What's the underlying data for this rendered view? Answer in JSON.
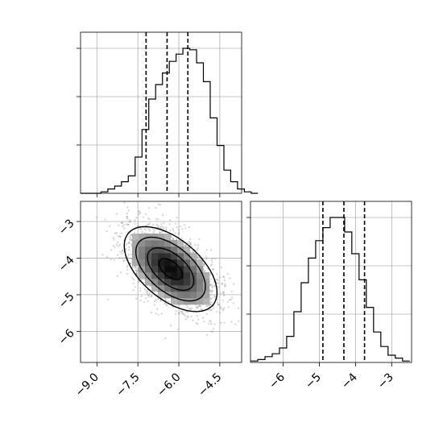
{
  "chart_data": [
    {
      "type": "histogram",
      "panel": "marginal-x",
      "x_range": [
        -9.6,
        -3.7
      ],
      "y_range": [
        0,
        1
      ],
      "grid": true,
      "bins_left_edge": -9.6,
      "bin_width": 0.25,
      "density": [
        0,
        0,
        0,
        0.01,
        0.03,
        0.05,
        0.08,
        0.12,
        0.25,
        0.44,
        0.65,
        0.75,
        0.83,
        0.91,
        0.96,
        1.0,
        0.99,
        0.9,
        0.77,
        0.52,
        0.33,
        0.16,
        0.08,
        0.03,
        0.01,
        0
      ],
      "quantiles": [
        -7.2,
        -6.43,
        -5.67
      ],
      "xticks": [],
      "yticks": []
    },
    {
      "type": "scatter-density",
      "panel": "joint",
      "x_range": [
        -9.6,
        -3.7
      ],
      "y_range": [
        -6.85,
        -2.45
      ],
      "grid": true,
      "center": [
        -6.3,
        -4.3
      ],
      "spread": [
        0.85,
        0.58
      ],
      "correlation": -0.55,
      "contour_levels_sigma": [
        0.5,
        1.0,
        1.5,
        2.0
      ],
      "xticks": [
        {
          "value": -9.0,
          "label": "−9.0"
        },
        {
          "value": -7.5,
          "label": "−7.5"
        },
        {
          "value": -6.0,
          "label": "−6.0"
        },
        {
          "value": -4.5,
          "label": "−4.5"
        }
      ],
      "yticks": [
        {
          "value": -3,
          "label": "−3"
        },
        {
          "value": -4,
          "label": "−4"
        },
        {
          "value": -5,
          "label": "−5"
        },
        {
          "value": -6,
          "label": "−6"
        }
      ]
    },
    {
      "type": "histogram",
      "panel": "marginal-y",
      "x_range": [
        -6.9,
        -2.45
      ],
      "y_range": [
        0,
        1
      ],
      "grid": true,
      "bins_left_edge": -6.9,
      "bin_width": 0.2,
      "density": [
        0.01,
        0.02,
        0.04,
        0.06,
        0.1,
        0.18,
        0.35,
        0.55,
        0.72,
        0.84,
        0.93,
        1.0,
        1.0,
        0.9,
        0.75,
        0.57,
        0.38,
        0.21,
        0.11,
        0.05,
        0.03,
        0.01
      ],
      "quantiles": [
        -4.9,
        -4.32,
        -3.75
      ],
      "xticks": [
        {
          "value": -6,
          "label": "−6"
        },
        {
          "value": -5,
          "label": "−5"
        },
        {
          "value": -4,
          "label": "−4"
        },
        {
          "value": -3,
          "label": "−3"
        }
      ],
      "yticks": []
    }
  ]
}
